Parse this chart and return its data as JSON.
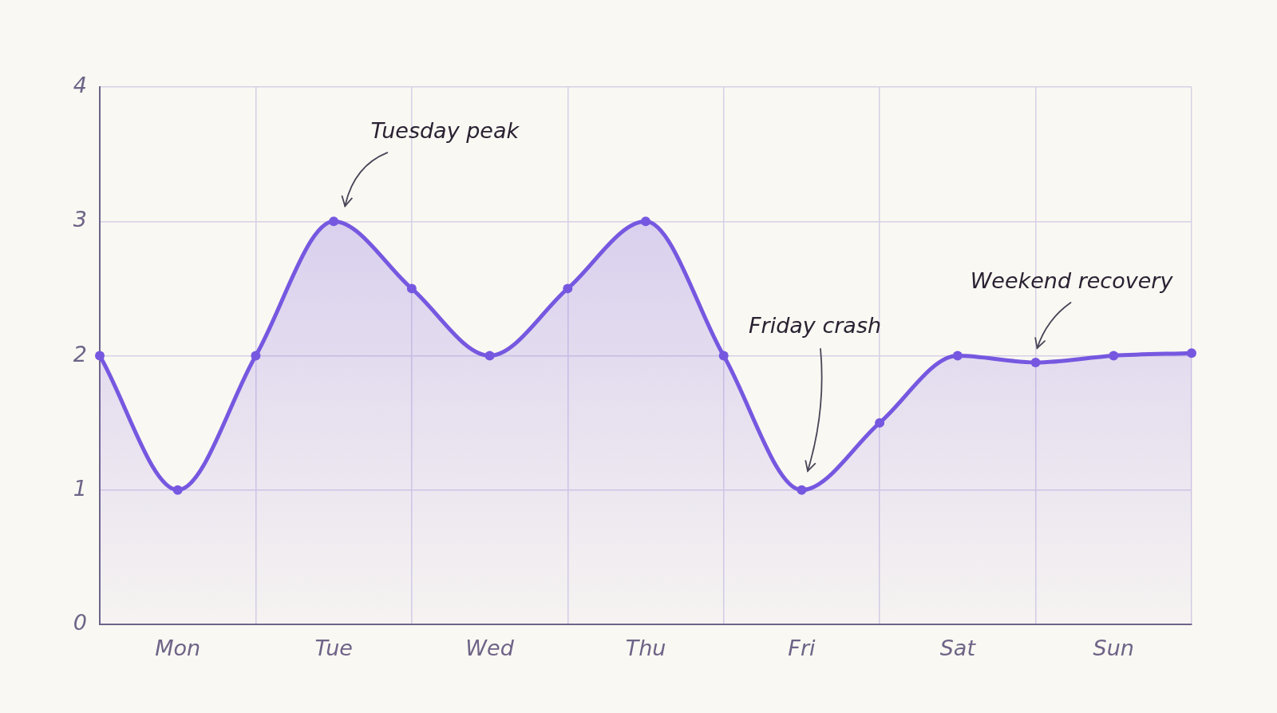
{
  "chart_data": {
    "type": "area",
    "categories": [
      null,
      "Mon",
      null,
      "Tue",
      null,
      "Wed",
      null,
      "Thu",
      null,
      "Fri",
      null,
      "Sat",
      null,
      "Sun",
      null
    ],
    "values": [
      2,
      1,
      2,
      3,
      2.5,
      2,
      2.5,
      3,
      2,
      1,
      1.5,
      2,
      1.95,
      2,
      2.02
    ],
    "color": "#7658e0",
    "ylim": [
      0,
      4
    ],
    "yticks": [
      0,
      1,
      2,
      3,
      4
    ],
    "grid": true,
    "marker": "circle",
    "line_style": "solid",
    "annotations": [
      "Tuesday peak",
      "Friday crash",
      "Weekend recovery"
    ]
  }
}
